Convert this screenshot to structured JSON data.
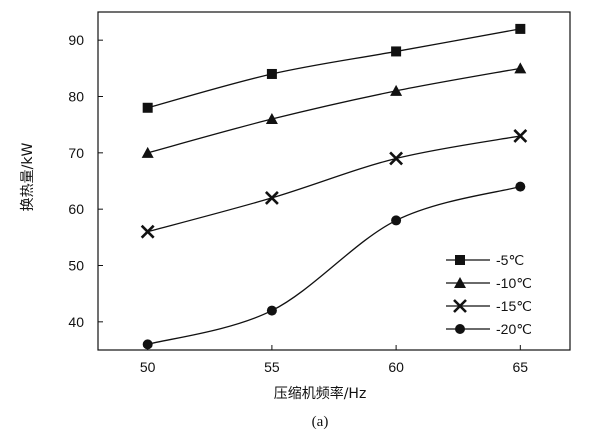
{
  "chart_data": {
    "type": "line",
    "x": [
      50,
      55,
      60,
      65
    ],
    "xlabel": "压缩机频率/Hz",
    "ylabel": "换热量/kW",
    "xlim": [
      48,
      67
    ],
    "ylim": [
      35,
      95
    ],
    "xticks": [
      50,
      55,
      60,
      65
    ],
    "yticks": [
      40,
      50,
      60,
      70,
      80,
      90
    ],
    "caption": "(a)",
    "grid": false,
    "legend_position": "lower-right",
    "series": [
      {
        "name": "-5℃",
        "marker": "square",
        "values": [
          78,
          84,
          88,
          92
        ]
      },
      {
        "name": "-10℃",
        "marker": "triangle",
        "values": [
          70,
          76,
          81,
          85
        ]
      },
      {
        "name": "-15℃",
        "marker": "x",
        "values": [
          56,
          62,
          69,
          73
        ]
      },
      {
        "name": "-20℃",
        "marker": "circle",
        "values": [
          36,
          42,
          58,
          64
        ]
      }
    ],
    "colors": {
      "line": "#111111",
      "axis": "#111111"
    }
  }
}
